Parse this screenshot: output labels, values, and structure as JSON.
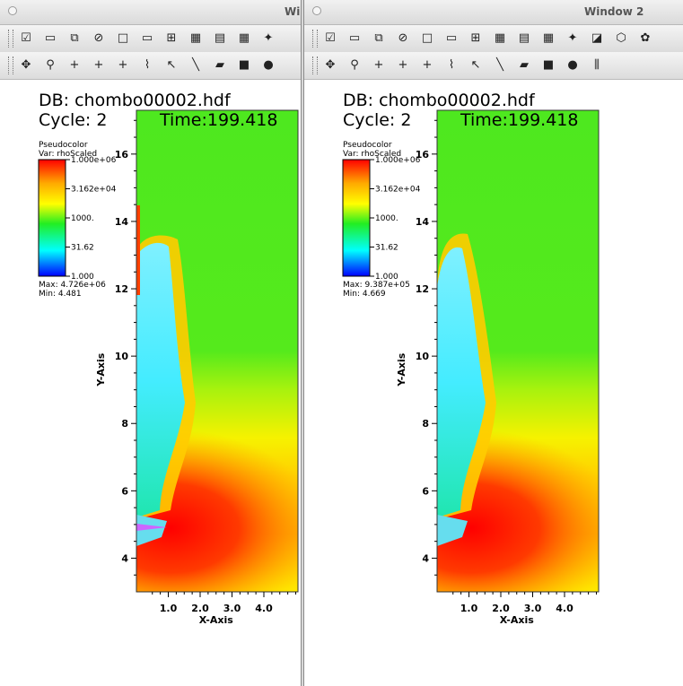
{
  "windows": [
    {
      "title": "Wi",
      "plot": {
        "db": "DB: chombo00002.hdf",
        "cycle": "Cycle: 2",
        "time": "Time:199.418",
        "legend_type": "Pseudocolor",
        "legend_var": "Var: rhoScaled",
        "legend_ticks": [
          "1.000e+06",
          "3.162e+04",
          "1000.",
          "31.62",
          "1.000"
        ],
        "max": "Max:  4.726e+06",
        "min": "Min:  4.481",
        "xlabel": "X-Axis",
        "ylabel": "Y-Axis",
        "xticks": [
          "1.0",
          "2.0",
          "3.0",
          "4.0"
        ],
        "yticks": [
          "16",
          "14",
          "12",
          "10",
          "8",
          "6",
          "4"
        ]
      }
    },
    {
      "title": "Window 2",
      "plot": {
        "db": "DB: chombo00002.hdf",
        "cycle": "Cycle: 2",
        "time": "Time:199.418",
        "legend_type": "Pseudocolor",
        "legend_var": "Var: rhoScaled",
        "legend_ticks": [
          "1.000e+06",
          "3.162e+04",
          "1000.",
          "31.62",
          "1.000"
        ],
        "max": "Max:  9.387e+05",
        "min": "Min:  4.669",
        "xlabel": "X-Axis",
        "ylabel": "Y-Axis",
        "xticks": [
          "1.0",
          "2.0",
          "3.0",
          "4.0"
        ],
        "yticks": [
          "16",
          "14",
          "12",
          "10",
          "8",
          "6",
          "4"
        ]
      }
    }
  ],
  "toolbar_top": [
    "active-window-icon",
    "new-window-icon",
    "clone-window-icon",
    "clear-window-icon",
    "layout-1x1-icon",
    "layout-1x2-icon",
    "layout-2x2-icon",
    "layout-2x3-icon",
    "layout-2x4-icon",
    "layout-3x3-icon",
    "spin-mode-icon",
    "invert-background-icon",
    "perspective-icon",
    "lock-view-icon"
  ],
  "toolbar_bottom": [
    "navigate-mode-icon",
    "zoom-mode-icon",
    "zone-pick-icon",
    "node-pick-icon",
    "spreadsheet-pick-icon",
    "lineout-icon",
    "point-tool-icon",
    "line-tool-icon",
    "plane-tool-icon",
    "box-tool-icon",
    "sphere-tool-icon",
    "axis-restriction-icon"
  ],
  "colors": {
    "legend": [
      "#ff0000",
      "#ffa800",
      "#ffff00",
      "#22ee22",
      "#00ffff",
      "#0000ff"
    ]
  }
}
